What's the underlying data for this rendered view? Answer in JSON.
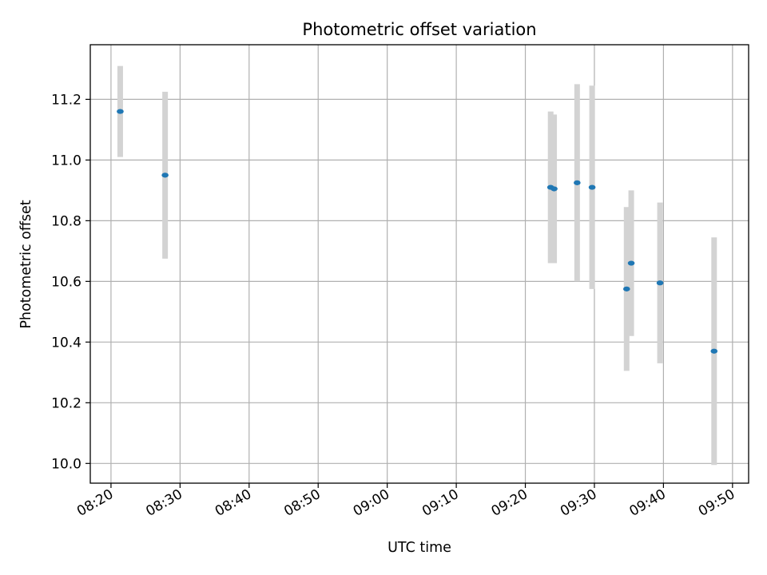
{
  "chart_data": {
    "type": "scatter",
    "title": "Photometric offset variation",
    "xlabel": "UTC time",
    "ylabel": "Photometric offset",
    "x_ticks": [
      "08:20",
      "08:30",
      "08:40",
      "08:50",
      "09:00",
      "09:10",
      "09:20",
      "09:30",
      "09:40",
      "09:50"
    ],
    "y_ticks": [
      "10.0",
      "10.2",
      "10.4",
      "10.6",
      "10.8",
      "11.0",
      "11.2"
    ],
    "xlim": [
      "08:17:00",
      "09:52:20"
    ],
    "ylim": [
      9.935,
      11.38
    ],
    "grid": true,
    "colors": {
      "point": "#1f77b4",
      "errorbar": "#d3d3d3",
      "grid": "#b0b0b0"
    },
    "points": [
      {
        "time": "08:21:20",
        "value": 11.16,
        "err_low": 11.01,
        "err_high": 11.31
      },
      {
        "time": "08:27:50",
        "value": 10.95,
        "err_low": 10.675,
        "err_high": 11.225
      },
      {
        "time": "09:23:40",
        "value": 10.91,
        "err_low": 10.66,
        "err_high": 11.16
      },
      {
        "time": "09:24:10",
        "value": 10.905,
        "err_low": 10.66,
        "err_high": 11.15
      },
      {
        "time": "09:27:30",
        "value": 10.925,
        "err_low": 10.6,
        "err_high": 11.25
      },
      {
        "time": "09:29:40",
        "value": 10.91,
        "err_low": 10.575,
        "err_high": 11.245
      },
      {
        "time": "09:34:40",
        "value": 10.575,
        "err_low": 10.305,
        "err_high": 10.845
      },
      {
        "time": "09:35:20",
        "value": 10.66,
        "err_low": 10.42,
        "err_high": 10.9
      },
      {
        "time": "09:39:30",
        "value": 10.595,
        "err_low": 10.33,
        "err_high": 10.86
      },
      {
        "time": "09:47:20",
        "value": 10.37,
        "err_low": 9.995,
        "err_high": 10.745
      }
    ]
  }
}
